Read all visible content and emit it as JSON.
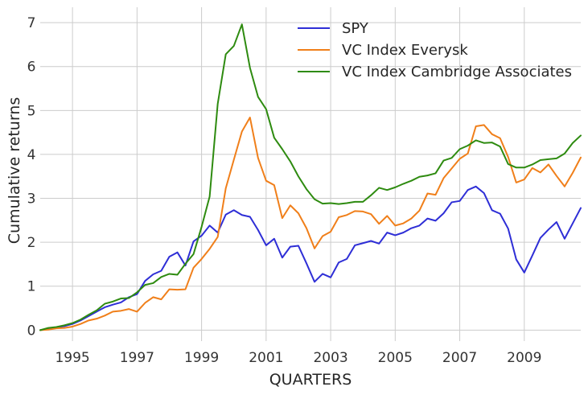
{
  "chart_data": {
    "type": "line",
    "xlabel": "QUARTERS",
    "ylabel": "Cumulative returns",
    "xlim": [
      1994.0,
      2010.75
    ],
    "ylim": [
      -0.25,
      7.35
    ],
    "x_ticks": [
      1995,
      1997,
      1999,
      2001,
      2003,
      2005,
      2007,
      2009
    ],
    "x_tick_labels": [
      "1995",
      "1997",
      "1999",
      "2001",
      "2003",
      "2005",
      "2007",
      "2009"
    ],
    "y_ticks": [
      0,
      1,
      2,
      3,
      4,
      5,
      6,
      7
    ],
    "y_tick_labels": [
      "0",
      "1",
      "2",
      "3",
      "4",
      "5",
      "6",
      "7"
    ],
    "grid": true,
    "legend_position": "top-right",
    "x_start": 1994.0,
    "x_step": 0.25,
    "series": [
      {
        "name": "SPY",
        "color": "#2e2ed6",
        "values": [
          0.0,
          0.03,
          0.06,
          0.09,
          0.14,
          0.22,
          0.32,
          0.42,
          0.52,
          0.58,
          0.63,
          0.75,
          0.82,
          1.12,
          1.27,
          1.35,
          1.67,
          1.77,
          1.47,
          2.02,
          2.15,
          2.38,
          2.22,
          2.63,
          2.73,
          2.62,
          2.58,
          2.28,
          1.93,
          2.08,
          1.65,
          1.9,
          1.92,
          1.52,
          1.1,
          1.28,
          1.2,
          1.54,
          1.62,
          1.93,
          1.98,
          2.03,
          1.97,
          2.22,
          2.16,
          2.22,
          2.32,
          2.38,
          2.54,
          2.49,
          2.66,
          2.91,
          2.94,
          3.19,
          3.27,
          3.12,
          2.73,
          2.65,
          2.31,
          1.61,
          1.31,
          1.7,
          2.1,
          2.29,
          2.46,
          2.08,
          2.43,
          2.78
        ]
      },
      {
        "name": "VC Index Everysk",
        "color": "#f07f1a",
        "values": [
          0.0,
          0.01,
          0.04,
          0.05,
          0.08,
          0.14,
          0.22,
          0.26,
          0.33,
          0.42,
          0.44,
          0.48,
          0.42,
          0.62,
          0.75,
          0.7,
          0.93,
          0.92,
          0.93,
          1.42,
          1.62,
          1.85,
          2.12,
          3.23,
          3.88,
          4.52,
          4.84,
          3.92,
          3.4,
          3.3,
          2.55,
          2.84,
          2.66,
          2.32,
          1.86,
          2.14,
          2.24,
          2.57,
          2.62,
          2.71,
          2.7,
          2.64,
          2.42,
          2.6,
          2.38,
          2.43,
          2.54,
          2.72,
          3.11,
          3.08,
          3.46,
          3.68,
          3.9,
          4.02,
          4.64,
          4.67,
          4.46,
          4.37,
          3.94,
          3.36,
          3.43,
          3.69,
          3.59,
          3.77,
          3.51,
          3.27,
          3.58,
          3.93
        ]
      },
      {
        "name": "VC Index Cambridge Associates",
        "color": "#2e8b10",
        "values": [
          0.0,
          0.05,
          0.07,
          0.11,
          0.16,
          0.24,
          0.35,
          0.45,
          0.6,
          0.65,
          0.72,
          0.73,
          0.86,
          1.03,
          1.07,
          1.21,
          1.28,
          1.26,
          1.51,
          1.73,
          2.35,
          3.04,
          5.15,
          6.28,
          6.47,
          6.96,
          5.97,
          5.31,
          5.03,
          4.38,
          4.12,
          3.84,
          3.5,
          3.21,
          2.98,
          2.88,
          2.89,
          2.87,
          2.89,
          2.92,
          2.92,
          3.07,
          3.24,
          3.19,
          3.25,
          3.33,
          3.4,
          3.49,
          3.52,
          3.57,
          3.86,
          3.92,
          4.12,
          4.2,
          4.32,
          4.26,
          4.27,
          4.18,
          3.78,
          3.7,
          3.7,
          3.77,
          3.87,
          3.89,
          3.91,
          4.02,
          4.26,
          4.43
        ]
      }
    ]
  }
}
